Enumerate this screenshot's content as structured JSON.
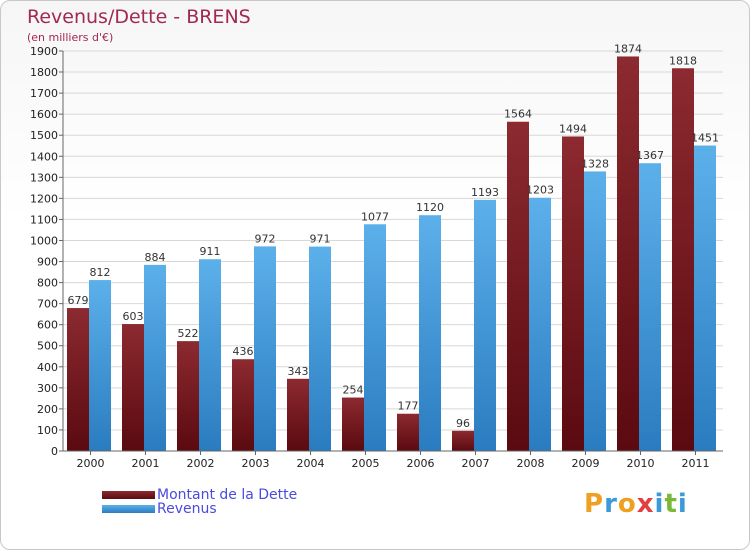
{
  "chart": {
    "title": "Revenus/Dette - BRENS",
    "subtitle": "(en milliers d'€)"
  },
  "chart_data": {
    "type": "bar",
    "title": "Revenus/Dette - BRENS",
    "subtitle": "(en milliers d'€)",
    "categories": [
      "2000",
      "2001",
      "2002",
      "2003",
      "2004",
      "2005",
      "2006",
      "2007",
      "2008",
      "2009",
      "2010",
      "2011"
    ],
    "series": [
      {
        "name": "Montant de la Dette",
        "color": "#7a1f24",
        "values": [
          679,
          603,
          522,
          436,
          343,
          254,
          177,
          96,
          1564,
          1494,
          1874,
          1818
        ]
      },
      {
        "name": "Revenus",
        "color": "#4aa0e0",
        "values": [
          812,
          884,
          911,
          972,
          971,
          1077,
          1120,
          1193,
          1203,
          1328,
          1367,
          1451
        ]
      }
    ],
    "yticks": [
      0,
      100,
      200,
      300,
      400,
      500,
      600,
      700,
      800,
      900,
      1000,
      1100,
      1200,
      1300,
      1400,
      1500,
      1600,
      1700,
      1800,
      1900
    ],
    "ylim": [
      0,
      1900
    ],
    "grid": true,
    "legend_position": "bottom-left"
  },
  "legend": {
    "items": [
      {
        "label": "Montant de la Dette",
        "color": "#7a1f24"
      },
      {
        "label": "Revenus",
        "color": "#4aa0e0"
      }
    ]
  },
  "logo": {
    "text": "Proxiti",
    "letters": [
      {
        "ch": "P",
        "color": "#f0a020"
      },
      {
        "ch": "r",
        "color": "#3c9ad8"
      },
      {
        "ch": "o",
        "color": "#f0a020"
      },
      {
        "ch": "x",
        "color": "#e04040"
      },
      {
        "ch": "i",
        "color": "#3c9ad8"
      },
      {
        "ch": "t",
        "color": "#7ab83a"
      },
      {
        "ch": "i",
        "color": "#3c9ad8"
      }
    ]
  }
}
